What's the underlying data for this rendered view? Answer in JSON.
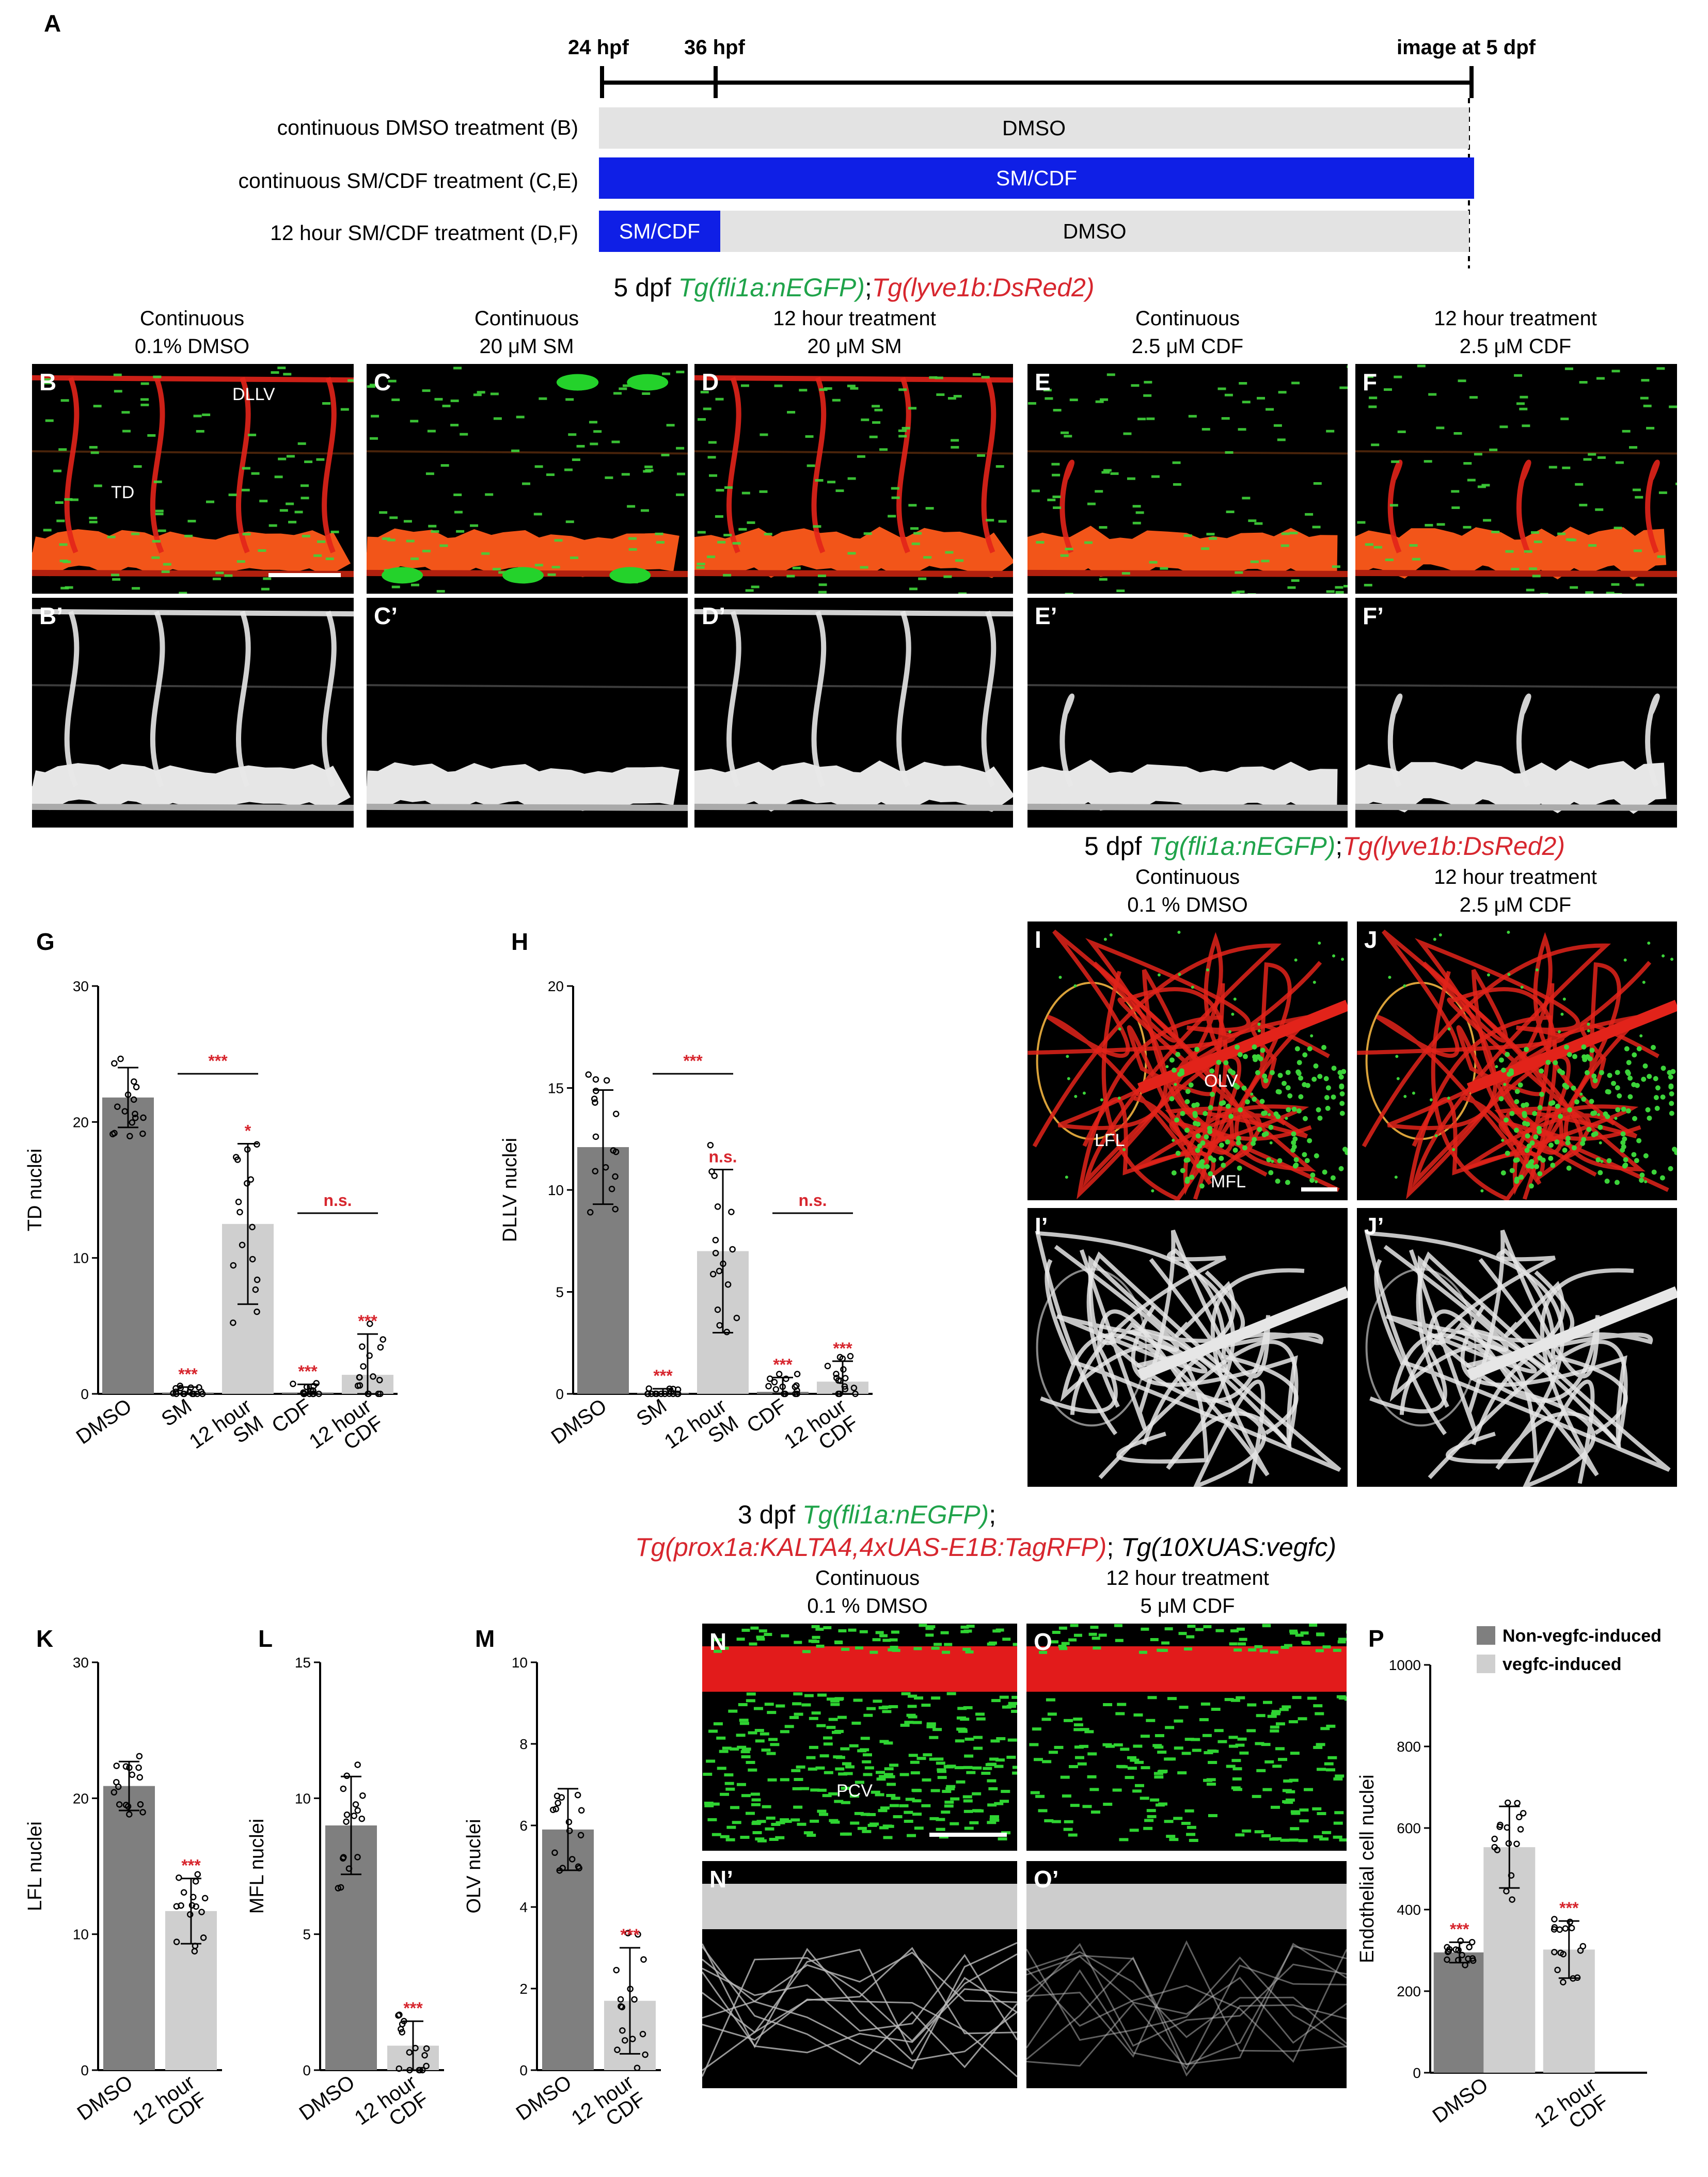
{
  "panel_A": {
    "label": "A",
    "timepoints": [
      "24 hpf",
      "36 hpf",
      "image at 5 dpf"
    ],
    "rows": [
      {
        "label": "continuous DMSO treatment (B)",
        "segments": [
          {
            "text": "DMSO",
            "color": "#e3e3e3"
          }
        ]
      },
      {
        "label": "continuous SM/CDF treatment (C,E)",
        "segments": [
          {
            "text": "SM/CDF",
            "color": "#0f1fe6"
          }
        ]
      },
      {
        "label": "12 hour SM/CDF treatment (D,F)",
        "segments": [
          {
            "text": "SM/CDF",
            "color": "#0f1fe6"
          },
          {
            "text": "DMSO",
            "color": "#e3e3e3"
          }
        ]
      }
    ]
  },
  "top_header": {
    "prefix": "5 dpf",
    "green": "Tg(fli1a:nEGFP)",
    "sep": ";",
    "red": "Tg(lyve1b:DsRed2)"
  },
  "column_titles": [
    {
      "line1": "Continuous",
      "line2": "0.1% DMSO"
    },
    {
      "line1": "Continuous",
      "line2": "20 μM SM"
    },
    {
      "line1": "12 hour treatment",
      "line2": "20 μM SM"
    },
    {
      "line1": "Continuous",
      "line2": "2.5 μM CDF"
    },
    {
      "line1": "12 hour treatment",
      "line2": "2.5 μM CDF"
    }
  ],
  "micro_labels_top": [
    "B",
    "C",
    "D",
    "E",
    "F"
  ],
  "micro_labels_bottom": [
    "B’",
    "C’",
    "D’",
    "E’",
    "F’"
  ],
  "arrows_B": {
    "dllv": "DLLV",
    "td": "TD"
  },
  "mid_header": {
    "prefix": "5 dpf",
    "green": "Tg(fli1a:nEGFP)",
    "sep": ";",
    "red": "Tg(lyve1b:DsRed2)"
  },
  "mid_titles": [
    {
      "line1": "Continuous",
      "line2": "0.1 % DMSO"
    },
    {
      "line1": "12 hour treatment",
      "line2": "2.5 μM CDF"
    }
  ],
  "panel_IJ_labels": [
    "I",
    "J",
    "I’",
    "J’"
  ],
  "arrows_I": {
    "olv": "OLV",
    "lfl": "LFL",
    "mfl": "MFL"
  },
  "bottom_header": {
    "prefix": "3 dpf",
    "green": "Tg(fli1a:nEGFP)",
    "sep": ";",
    "red": "Tg(prox1a:KALTA4,4xUAS-E1B:TagRFP)",
    "sep2": ";",
    "black": "Tg(10XUAS:vegfc)"
  },
  "bottom_titles": [
    {
      "line1": "Continuous",
      "line2": "0.1 % DMSO"
    },
    {
      "line1": "12 hour treatment",
      "line2": "5 μM CDF"
    }
  ],
  "panel_NO_labels": [
    "N",
    "O",
    "N’",
    "O’"
  ],
  "pcv_label": "PCV",
  "colors": {
    "dark_bar": "#7f7f7f",
    "light_bar": "#cfcfcf",
    "sig": "#d7262e"
  },
  "chart_data": [
    {
      "panel": "G",
      "type": "bar",
      "ylabel": "TD nuclei",
      "ylim": [
        0,
        30
      ],
      "yticks": [
        0,
        10,
        20,
        30
      ],
      "categories": [
        "DMSO",
        "SM",
        "12 hour SM",
        "CDF",
        "12 hour CDF"
      ],
      "values": [
        21.8,
        0.1,
        12.5,
        0.1,
        1.4
      ],
      "sd": [
        2.2,
        0.4,
        5.9,
        0.6,
        3.0
      ],
      "sig": [
        "",
        "***",
        "*",
        "***",
        "***"
      ],
      "brackets": [
        {
          "from": 1,
          "to": 2,
          "text": "***"
        },
        {
          "from": 3,
          "to": 4,
          "text": "n.s."
        }
      ]
    },
    {
      "panel": "H",
      "type": "bar",
      "ylabel": "DLLV nuclei",
      "ylim": [
        0,
        20
      ],
      "yticks": [
        0,
        5,
        10,
        15,
        20
      ],
      "categories": [
        "DMSO",
        "SM",
        "12 hour SM",
        "CDF",
        "12 hour CDF"
      ],
      "values": [
        12.1,
        0.05,
        7.0,
        0.1,
        0.6
      ],
      "sd": [
        2.8,
        0.2,
        4.0,
        0.7,
        1.0
      ],
      "sig": [
        "",
        "***",
        "n.s.",
        "***",
        "***"
      ],
      "brackets": [
        {
          "from": 1,
          "to": 2,
          "text": "***"
        },
        {
          "from": 3,
          "to": 4,
          "text": "n.s."
        }
      ]
    },
    {
      "panel": "K",
      "type": "bar",
      "ylabel": "LFL nuclei",
      "ylim": [
        0,
        30
      ],
      "yticks": [
        0,
        10,
        20,
        30
      ],
      "categories": [
        "DMSO",
        "12 hour CDF"
      ],
      "values": [
        20.9,
        11.7
      ],
      "sd": [
        1.8,
        2.4
      ],
      "sig": [
        "",
        "***"
      ]
    },
    {
      "panel": "L",
      "type": "bar",
      "ylabel": "MFL nuclei",
      "ylim": [
        0,
        15
      ],
      "yticks": [
        0,
        5,
        10,
        15
      ],
      "categories": [
        "DMSO",
        "12 hour CDF"
      ],
      "values": [
        9.0,
        0.9
      ],
      "sd": [
        1.8,
        0.9
      ],
      "sig": [
        "",
        "***"
      ]
    },
    {
      "panel": "M",
      "type": "bar",
      "ylabel": "OLV nuclei",
      "ylim": [
        0,
        10
      ],
      "yticks": [
        0,
        2,
        4,
        6,
        8,
        10
      ],
      "categories": [
        "DMSO",
        "12 hour CDF"
      ],
      "values": [
        5.9,
        1.7
      ],
      "sd": [
        1.0,
        1.3
      ],
      "sig": [
        "",
        "***"
      ]
    },
    {
      "panel": "P",
      "type": "bar",
      "ylabel": "Endothelial cell nuclei",
      "ylim": [
        0,
        1000
      ],
      "yticks": [
        0,
        200,
        400,
        600,
        800,
        1000
      ],
      "categories": [
        "DMSO",
        "12 hour CDF"
      ],
      "series": [
        {
          "name": "Non-vegfc-induced",
          "color": "#7f7f7f"
        },
        {
          "name": "vegfc-induced",
          "color": "#cfcfcf"
        }
      ],
      "bars": [
        {
          "group": 0,
          "series": 0,
          "value": 295,
          "sd": 25,
          "sig": "***"
        },
        {
          "group": 0,
          "series": 1,
          "value": 553,
          "sd": 100,
          "sig": ""
        },
        {
          "group": 1,
          "series": 1,
          "value": 302,
          "sd": 70,
          "sig": "***"
        }
      ],
      "legend": "top-right"
    }
  ]
}
